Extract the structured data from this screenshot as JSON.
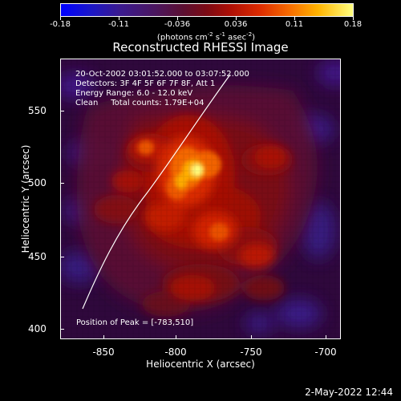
{
  "colorbar": {
    "tick_labels": [
      "-0.18",
      "-0.11",
      "-0.036",
      "0.036",
      "0.11",
      "0.18"
    ],
    "units": {
      "prefix": "(photons cm",
      "exp1": "-2",
      "middle": " s",
      "exp2": "-1",
      "suffix": " asec",
      "exp3": "-2",
      "end": ")"
    }
  },
  "title": "Reconstructed RHESSI Image",
  "info_lines": [
    "20-Oct-2002 03:01:52.000 to 03:07:52.000",
    "Detectors: 3F 4F 5F 6F 7F 8F, Att 1",
    "Energy Range: 6.0 - 12.0 keV",
    "Clean     Total counts: 1.79E+04"
  ],
  "peak_text": "Position of Peak = [-783,510]",
  "x_axis": {
    "title": "Heliocentric X (arcsec)",
    "tick_labels": [
      "-850",
      "-800",
      "-750",
      "-700"
    ]
  },
  "y_axis": {
    "title": "Heliocentric Y (arcsec)",
    "tick_labels": [
      "550",
      "500",
      "450",
      "400"
    ]
  },
  "timestamp": "2-May-2022 12:44",
  "colors": {
    "background": "#000000",
    "low": "#2f083c",
    "mid": "#7c0a14",
    "high": "#ffff7f",
    "limb": "#ffffff"
  }
}
